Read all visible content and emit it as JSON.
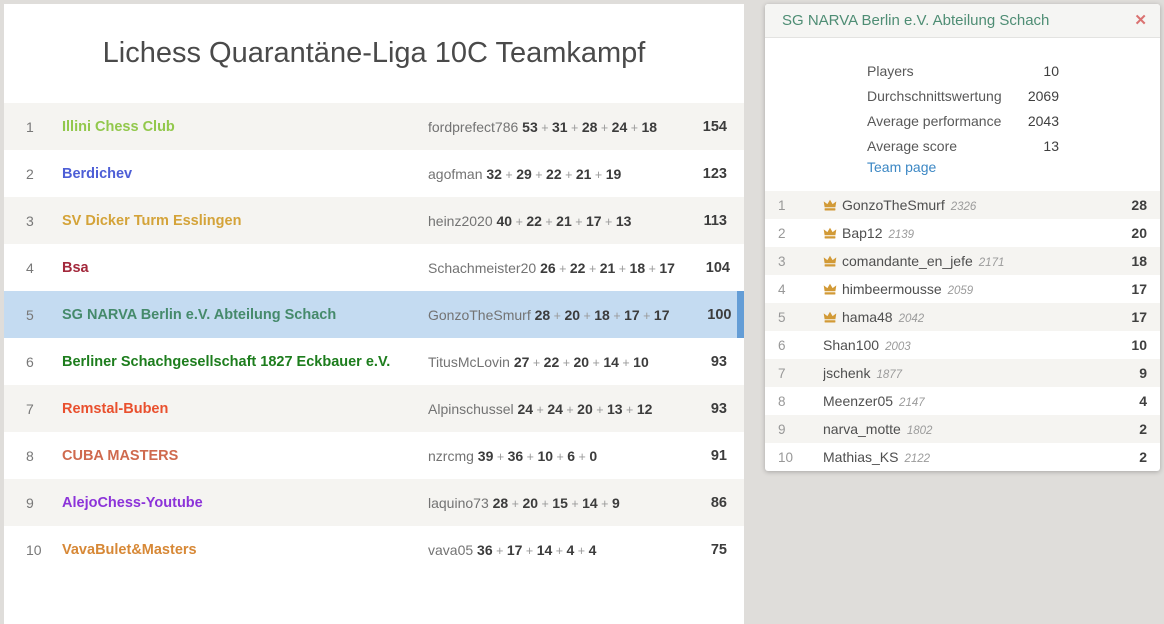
{
  "tournament": {
    "title": "Lichess Quarantäne-Liga 10C Teamkampf",
    "standings": [
      {
        "rank": 1,
        "team": "Illini Chess Club",
        "color": "#92c84c",
        "player": "fordprefect786",
        "scores": [
          53,
          31,
          28,
          24,
          18
        ],
        "total": 154,
        "highlighted": false
      },
      {
        "rank": 2,
        "team": "Berdichev",
        "color": "#4d5ed6",
        "player": "agofman",
        "scores": [
          32,
          29,
          22,
          21,
          19
        ],
        "total": 123,
        "highlighted": false
      },
      {
        "rank": 3,
        "team": "SV Dicker Turm Esslingen",
        "color": "#d4a339",
        "player": "heinz2020",
        "scores": [
          40,
          22,
          21,
          17,
          13
        ],
        "total": 113,
        "highlighted": false
      },
      {
        "rank": 4,
        "team": "Bsa",
        "color": "#a3293c",
        "player": "Schachmeister20",
        "scores": [
          26,
          22,
          21,
          18,
          17
        ],
        "total": 104,
        "highlighted": false
      },
      {
        "rank": 5,
        "team": "SG NARVA Berlin e.V. Abteilung Schach",
        "color": "#458a6b",
        "player": "GonzoTheSmurf",
        "scores": [
          28,
          20,
          18,
          17,
          17
        ],
        "total": 100,
        "highlighted": true
      },
      {
        "rank": 6,
        "team": "Berliner Schachgesellschaft 1827 Eckbauer e.V.",
        "color": "#1d7d1d",
        "player": "TitusMcLovin",
        "scores": [
          27,
          22,
          20,
          14,
          10
        ],
        "total": 93,
        "highlighted": false
      },
      {
        "rank": 7,
        "team": "Remstal-Buben",
        "color": "#e9502e",
        "player": "Alpinschussel",
        "scores": [
          24,
          24,
          20,
          13,
          12
        ],
        "total": 93,
        "highlighted": false
      },
      {
        "rank": 8,
        "team": "CUBA MASTERS",
        "color": "#cf6a4e",
        "player": "nzrcmg",
        "scores": [
          39,
          36,
          10,
          6,
          0
        ],
        "total": 91,
        "highlighted": false
      },
      {
        "rank": 9,
        "team": "AlejoChess-Youtube",
        "color": "#8c33d9",
        "player": "laquino73",
        "scores": [
          28,
          20,
          15,
          14,
          9
        ],
        "total": 86,
        "highlighted": false
      },
      {
        "rank": 10,
        "team": "VavaBulet&Masters",
        "color": "#d78836",
        "player": "vava05",
        "scores": [
          36,
          17,
          14,
          4,
          4
        ],
        "total": 75,
        "highlighted": false
      }
    ]
  },
  "team_panel": {
    "title": "SG NARVA Berlin e.V. Abteilung Schach",
    "title_color": "#4e8d74",
    "close_icon": "✕",
    "close_color": "#da7271",
    "stats": [
      {
        "label": "Players",
        "value": "10"
      },
      {
        "label": "Durchschnittswertung",
        "value": "2069"
      },
      {
        "label": "Average performance",
        "value": "2043"
      },
      {
        "label": "Average score",
        "value": "13"
      }
    ],
    "team_page_label": "Team page",
    "link_color": "#3b87c4",
    "crown_color": "#d29a36",
    "highlight_color": "#c4dbf1",
    "players": [
      {
        "rank": 1,
        "leader": true,
        "name": "GonzoTheSmurf",
        "rating": "2326",
        "score": "28"
      },
      {
        "rank": 2,
        "leader": true,
        "name": "Bap12",
        "rating": "2139",
        "score": "20"
      },
      {
        "rank": 3,
        "leader": true,
        "name": "comandante_en_jefe",
        "rating": "2171",
        "score": "18"
      },
      {
        "rank": 4,
        "leader": true,
        "name": "himbeermousse",
        "rating": "2059",
        "score": "17"
      },
      {
        "rank": 5,
        "leader": true,
        "name": "hama48",
        "rating": "2042",
        "score": "17"
      },
      {
        "rank": 6,
        "leader": false,
        "name": "Shan100",
        "rating": "2003",
        "score": "10"
      },
      {
        "rank": 7,
        "leader": false,
        "name": "jschenk",
        "rating": "1877",
        "score": "9"
      },
      {
        "rank": 8,
        "leader": false,
        "name": "Meenzer05",
        "rating": "2147",
        "score": "4"
      },
      {
        "rank": 9,
        "leader": false,
        "name": "narva_motte",
        "rating": "1802",
        "score": "2"
      },
      {
        "rank": 10,
        "leader": false,
        "name": "Mathias_KS",
        "rating": "2122",
        "score": "2"
      }
    ]
  }
}
